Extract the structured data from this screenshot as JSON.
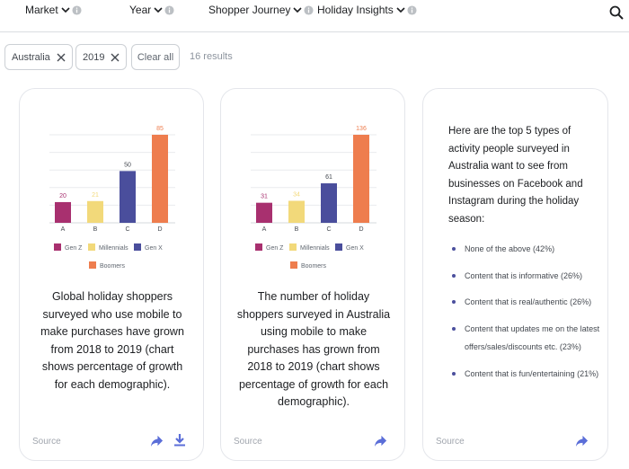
{
  "filters": [
    {
      "label": "Market"
    },
    {
      "label": "Year"
    },
    {
      "label": "Shopper Journey"
    },
    {
      "label": "Holiday Insights"
    }
  ],
  "chips": [
    {
      "label": "Australia"
    },
    {
      "label": "2019"
    }
  ],
  "clear_label": "Clear all",
  "results_label": "16 results",
  "colors": {
    "gen_z": "#a8306f",
    "millennials": "#f2d97a",
    "gen_x": "#4a4e9c",
    "boomers": "#ee7d4e",
    "share_icon": "#5b6ed8"
  },
  "cards": [
    {
      "chart_data": {
        "type": "bar",
        "categories": [
          "A",
          "B",
          "C",
          "D"
        ],
        "values": [
          20,
          21,
          50,
          85
        ],
        "series_names": [
          "Gen Z",
          "Millennials",
          "Gen X",
          "Boomers"
        ],
        "ylim": [
          0,
          85
        ],
        "grid": true,
        "legend": "bottom"
      },
      "description": "Global holiday shoppers surveyed who use mobile to make purchases have grown from 2018 to 2019 (chart shows percentage of growth for each demographic).",
      "source_label": "Source",
      "has_download": true
    },
    {
      "chart_data": {
        "type": "bar",
        "categories": [
          "A",
          "B",
          "C",
          "D"
        ],
        "values": [
          31,
          34,
          61,
          136
        ],
        "series_names": [
          "Gen Z",
          "Millennials",
          "Gen X",
          "Boomers"
        ],
        "ylim": [
          0,
          136
        ],
        "grid": true,
        "legend": "bottom"
      },
      "description": "The number of holiday shoppers surveyed in Australia using mobile to make purchases has grown from 2018 to 2019 (chart shows percentage of growth for each demographic).",
      "source_label": "Source",
      "has_download": false
    },
    {
      "intro": "Here are the top 5 types of activity people surveyed in Australia want to see from businesses on Facebook and Instagram during the holiday season:",
      "items": [
        "None of the above (42%)",
        "Content that is informative (26%)",
        "Content that is real/authentic (26%)",
        "Content that updates me on the latest offers/sales/discounts etc. (23%)",
        "Content that is fun/entertaining (21%)"
      ],
      "source_label": "Source",
      "has_download": false
    }
  ]
}
